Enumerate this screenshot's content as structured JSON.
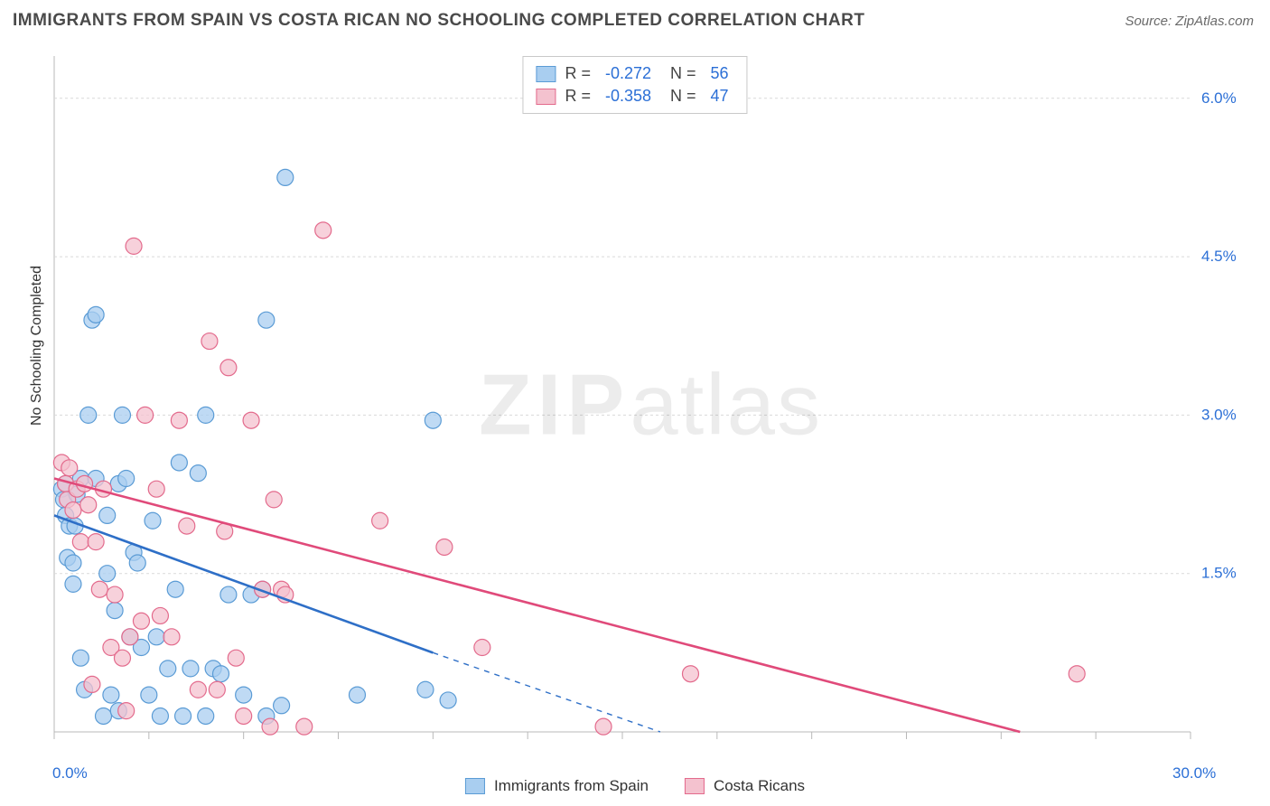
{
  "title": "IMMIGRANTS FROM SPAIN VS COSTA RICAN NO SCHOOLING COMPLETED CORRELATION CHART",
  "source_label": "Source: ZipAtlas.com",
  "ylabel": "No Schooling Completed",
  "watermark_bold": "ZIP",
  "watermark_light": "atlas",
  "chart": {
    "type": "scatter",
    "xlim": [
      0,
      30
    ],
    "ylim": [
      0,
      6.4
    ],
    "xticks": [
      0,
      2.5,
      5,
      7.5,
      10,
      12.5,
      15,
      17.5,
      20,
      22.5,
      25,
      27.5,
      30
    ],
    "yticks": [
      1.5,
      3.0,
      4.5,
      6.0
    ],
    "y_tick_labels": [
      "1.5%",
      "3.0%",
      "4.5%",
      "6.0%"
    ],
    "x_min_label": "0.0%",
    "x_max_label": "30.0%",
    "plot_bg": "#ffffff",
    "grid_color": "#d9d9d9",
    "axis_color": "#b8b8b8",
    "label_color": "#2b6fd6",
    "marker_radius": 9,
    "marker_stroke_width": 1.2,
    "trend_width": 2.6,
    "dash_pattern": "6 6"
  },
  "series_a": {
    "name": "Immigrants from Spain",
    "fill": "#a9cef0",
    "stroke": "#5a9bd5",
    "R": "-0.272",
    "N": "56",
    "trend": {
      "x1": 0,
      "y1": 2.05,
      "x2_solid": 10,
      "y2_solid": 0.75,
      "x2_dash": 16,
      "y2_dash": 0.0,
      "color": "#2e6fc7"
    },
    "points": [
      [
        0.2,
        2.3
      ],
      [
        0.25,
        2.2
      ],
      [
        0.3,
        2.35
      ],
      [
        0.3,
        2.05
      ],
      [
        0.4,
        1.95
      ],
      [
        0.35,
        1.65
      ],
      [
        0.5,
        1.6
      ],
      [
        0.5,
        1.4
      ],
      [
        0.55,
        1.95
      ],
      [
        0.6,
        2.25
      ],
      [
        0.7,
        2.4
      ],
      [
        0.7,
        0.7
      ],
      [
        0.8,
        0.4
      ],
      [
        0.9,
        3.0
      ],
      [
        1.0,
        3.9
      ],
      [
        1.1,
        3.95
      ],
      [
        1.1,
        2.4
      ],
      [
        1.3,
        0.15
      ],
      [
        1.4,
        2.05
      ],
      [
        1.4,
        1.5
      ],
      [
        1.5,
        0.35
      ],
      [
        1.6,
        1.15
      ],
      [
        1.7,
        2.35
      ],
      [
        1.7,
        0.2
      ],
      [
        1.8,
        3.0
      ],
      [
        1.9,
        2.4
      ],
      [
        2.0,
        0.9
      ],
      [
        2.1,
        1.7
      ],
      [
        2.2,
        1.6
      ],
      [
        2.3,
        0.8
      ],
      [
        2.5,
        0.35
      ],
      [
        2.6,
        2.0
      ],
      [
        2.7,
        0.9
      ],
      [
        2.8,
        0.15
      ],
      [
        3.0,
        0.6
      ],
      [
        3.2,
        1.35
      ],
      [
        3.3,
        2.55
      ],
      [
        3.4,
        0.15
      ],
      [
        3.6,
        0.6
      ],
      [
        3.8,
        2.45
      ],
      [
        4.0,
        0.15
      ],
      [
        4.0,
        3.0
      ],
      [
        4.2,
        0.6
      ],
      [
        4.4,
        0.55
      ],
      [
        4.6,
        1.3
      ],
      [
        5.0,
        0.35
      ],
      [
        5.2,
        1.3
      ],
      [
        5.5,
        1.35
      ],
      [
        5.6,
        0.15
      ],
      [
        5.6,
        3.9
      ],
      [
        6.0,
        0.25
      ],
      [
        6.1,
        5.25
      ],
      [
        8.0,
        0.35
      ],
      [
        9.8,
        0.4
      ],
      [
        10.0,
        2.95
      ],
      [
        10.4,
        0.3
      ]
    ]
  },
  "series_b": {
    "name": "Costa Ricans",
    "fill": "#f4c2cf",
    "stroke": "#e36a8c",
    "R": "-0.358",
    "N": "47",
    "trend": {
      "x1": 0,
      "y1": 2.4,
      "x2_solid": 25.5,
      "y2_solid": 0.0,
      "color": "#e04a7a"
    },
    "points": [
      [
        0.2,
        2.55
      ],
      [
        0.3,
        2.35
      ],
      [
        0.35,
        2.2
      ],
      [
        0.4,
        2.5
      ],
      [
        0.5,
        2.1
      ],
      [
        0.6,
        2.3
      ],
      [
        0.7,
        1.8
      ],
      [
        0.8,
        2.35
      ],
      [
        0.9,
        2.15
      ],
      [
        1.0,
        0.45
      ],
      [
        1.1,
        1.8
      ],
      [
        1.2,
        1.35
      ],
      [
        1.3,
        2.3
      ],
      [
        1.5,
        0.8
      ],
      [
        1.6,
        1.3
      ],
      [
        1.8,
        0.7
      ],
      [
        1.9,
        0.2
      ],
      [
        2.0,
        0.9
      ],
      [
        2.1,
        4.6
      ],
      [
        2.3,
        1.05
      ],
      [
        2.4,
        3.0
      ],
      [
        2.7,
        2.3
      ],
      [
        2.8,
        1.1
      ],
      [
        3.1,
        0.9
      ],
      [
        3.3,
        2.95
      ],
      [
        3.5,
        1.95
      ],
      [
        3.8,
        0.4
      ],
      [
        4.1,
        3.7
      ],
      [
        4.3,
        0.4
      ],
      [
        4.5,
        1.9
      ],
      [
        4.6,
        3.45
      ],
      [
        4.8,
        0.7
      ],
      [
        5.0,
        0.15
      ],
      [
        5.2,
        2.95
      ],
      [
        5.5,
        1.35
      ],
      [
        5.7,
        0.05
      ],
      [
        5.8,
        2.2
      ],
      [
        6.0,
        1.35
      ],
      [
        6.1,
        1.3
      ],
      [
        6.6,
        0.05
      ],
      [
        7.1,
        4.75
      ],
      [
        8.6,
        2.0
      ],
      [
        10.3,
        1.75
      ],
      [
        11.3,
        0.8
      ],
      [
        14.5,
        0.05
      ],
      [
        16.8,
        0.55
      ],
      [
        27.0,
        0.55
      ]
    ]
  },
  "legend_stats": [
    {
      "swatch_fill": "#a9cef0",
      "swatch_stroke": "#5a9bd5",
      "R": "-0.272",
      "N": "56"
    },
    {
      "swatch_fill": "#f4c2cf",
      "swatch_stroke": "#e36a8c",
      "R": "-0.358",
      "N": "47"
    }
  ],
  "legend_bottom": [
    {
      "fill": "#a9cef0",
      "stroke": "#5a9bd5",
      "label": "Immigrants from Spain"
    },
    {
      "fill": "#f4c2cf",
      "stroke": "#e36a8c",
      "label": "Costa Ricans"
    }
  ]
}
